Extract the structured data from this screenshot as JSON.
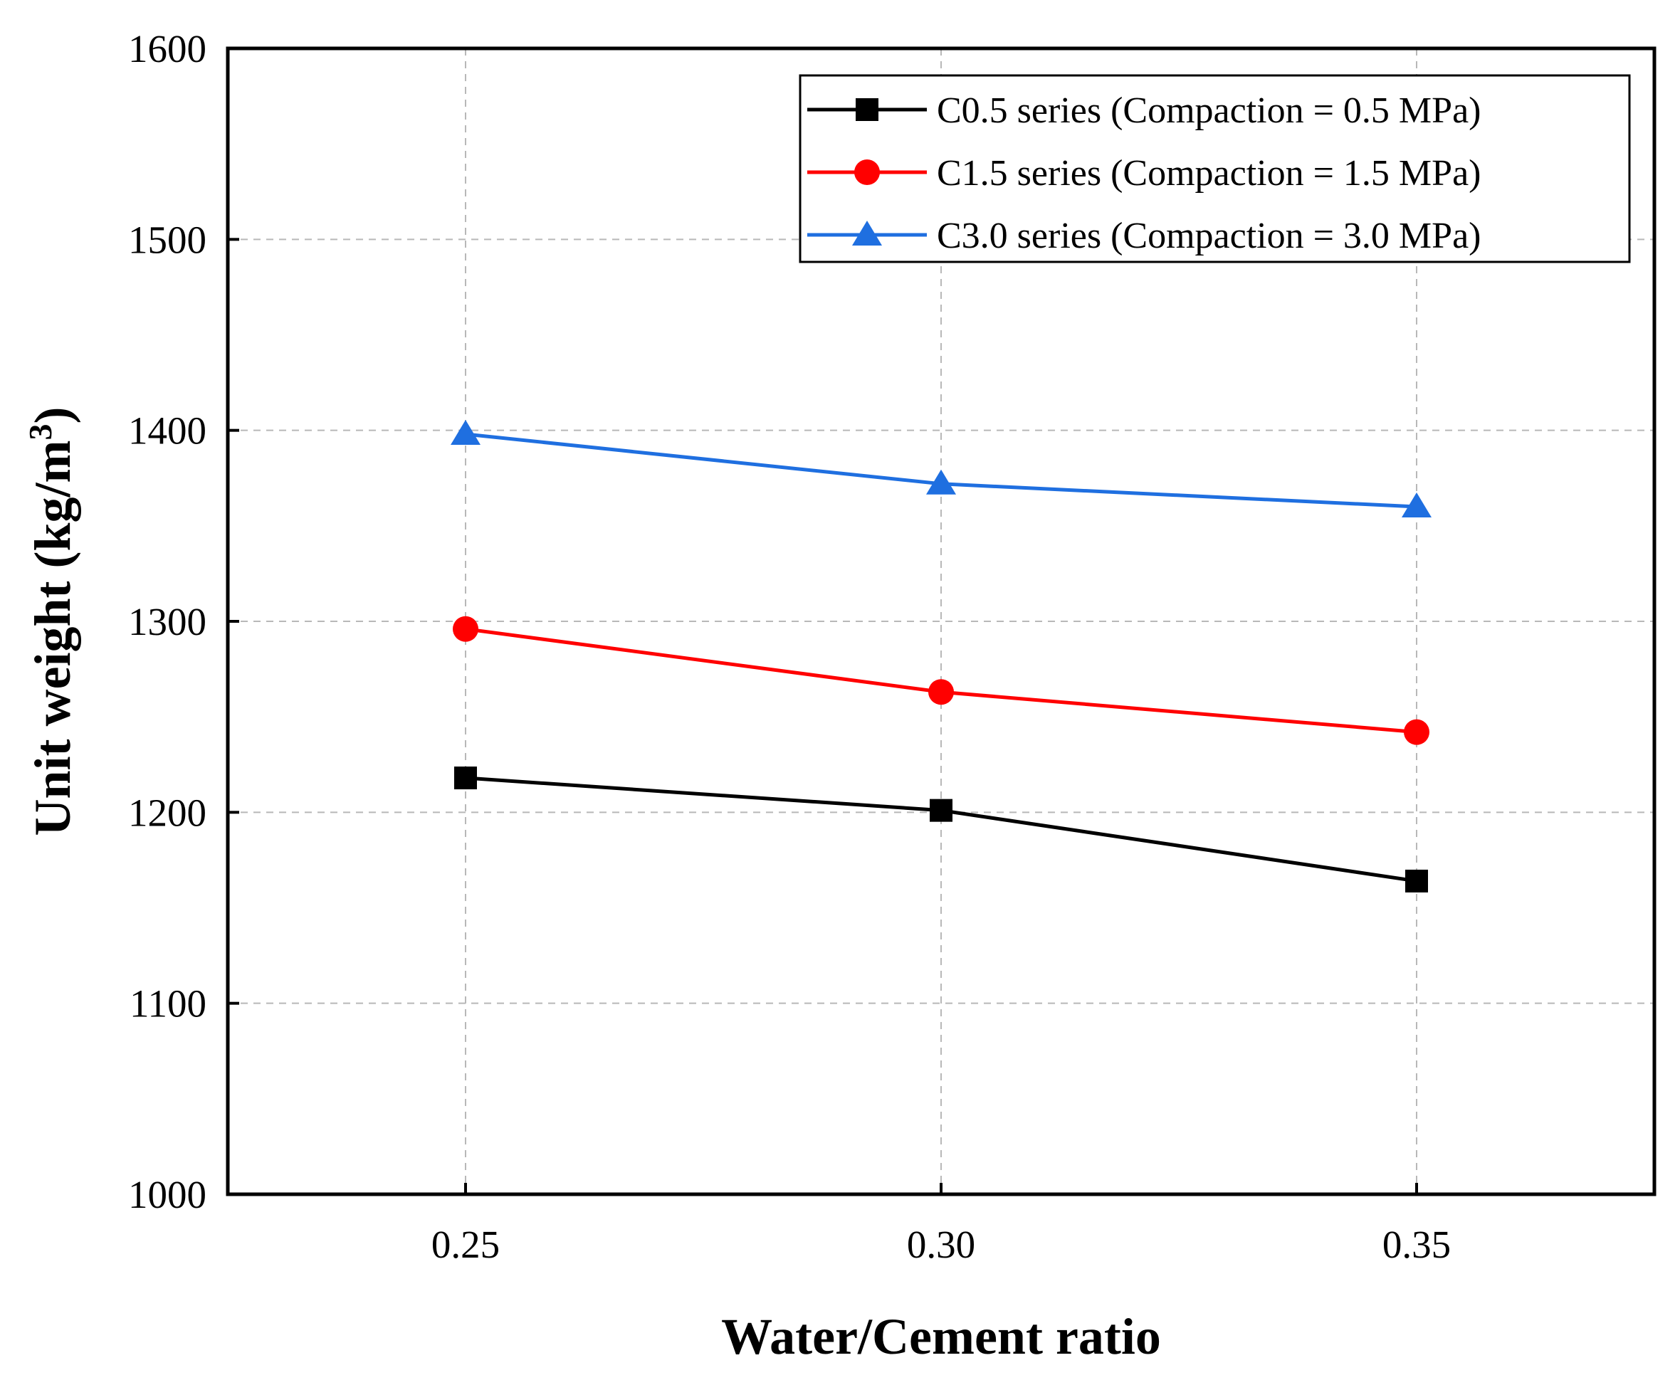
{
  "chart_data": {
    "type": "line",
    "title": "",
    "xlabel": "Water/Cement ratio",
    "ylabel": "Unit weight (kg/m",
    "ylabel_superscript": "3",
    "ylabel_close": ")",
    "x": [
      0.25,
      0.3,
      0.35
    ],
    "x_tick_labels": [
      "0.25",
      "0.30",
      "0.35"
    ],
    "xlim": [
      0.225,
      0.375
    ],
    "ylim": [
      1000,
      1600
    ],
    "y_ticks": [
      1000,
      1100,
      1200,
      1300,
      1400,
      1500,
      1600
    ],
    "y_tick_labels": [
      "1000",
      "1100",
      "1200",
      "1300",
      "1400",
      "1500",
      "1600"
    ],
    "grid": true,
    "legend_position": "top-right",
    "series": [
      {
        "name": "C0.5 series (Compaction = 0.5 MPa)",
        "marker": "square",
        "color": "#000000",
        "values": [
          1218,
          1201,
          1164
        ]
      },
      {
        "name": "C1.5 series  (Compaction = 1.5 MPa)",
        "marker": "circle",
        "color": "#ff0000",
        "values": [
          1296,
          1263,
          1242
        ]
      },
      {
        "name": "C3.0 series  (Compaction = 3.0 MPa)",
        "marker": "triangle",
        "color": "#1f6fe0",
        "values": [
          1398,
          1372,
          1360
        ]
      }
    ]
  }
}
